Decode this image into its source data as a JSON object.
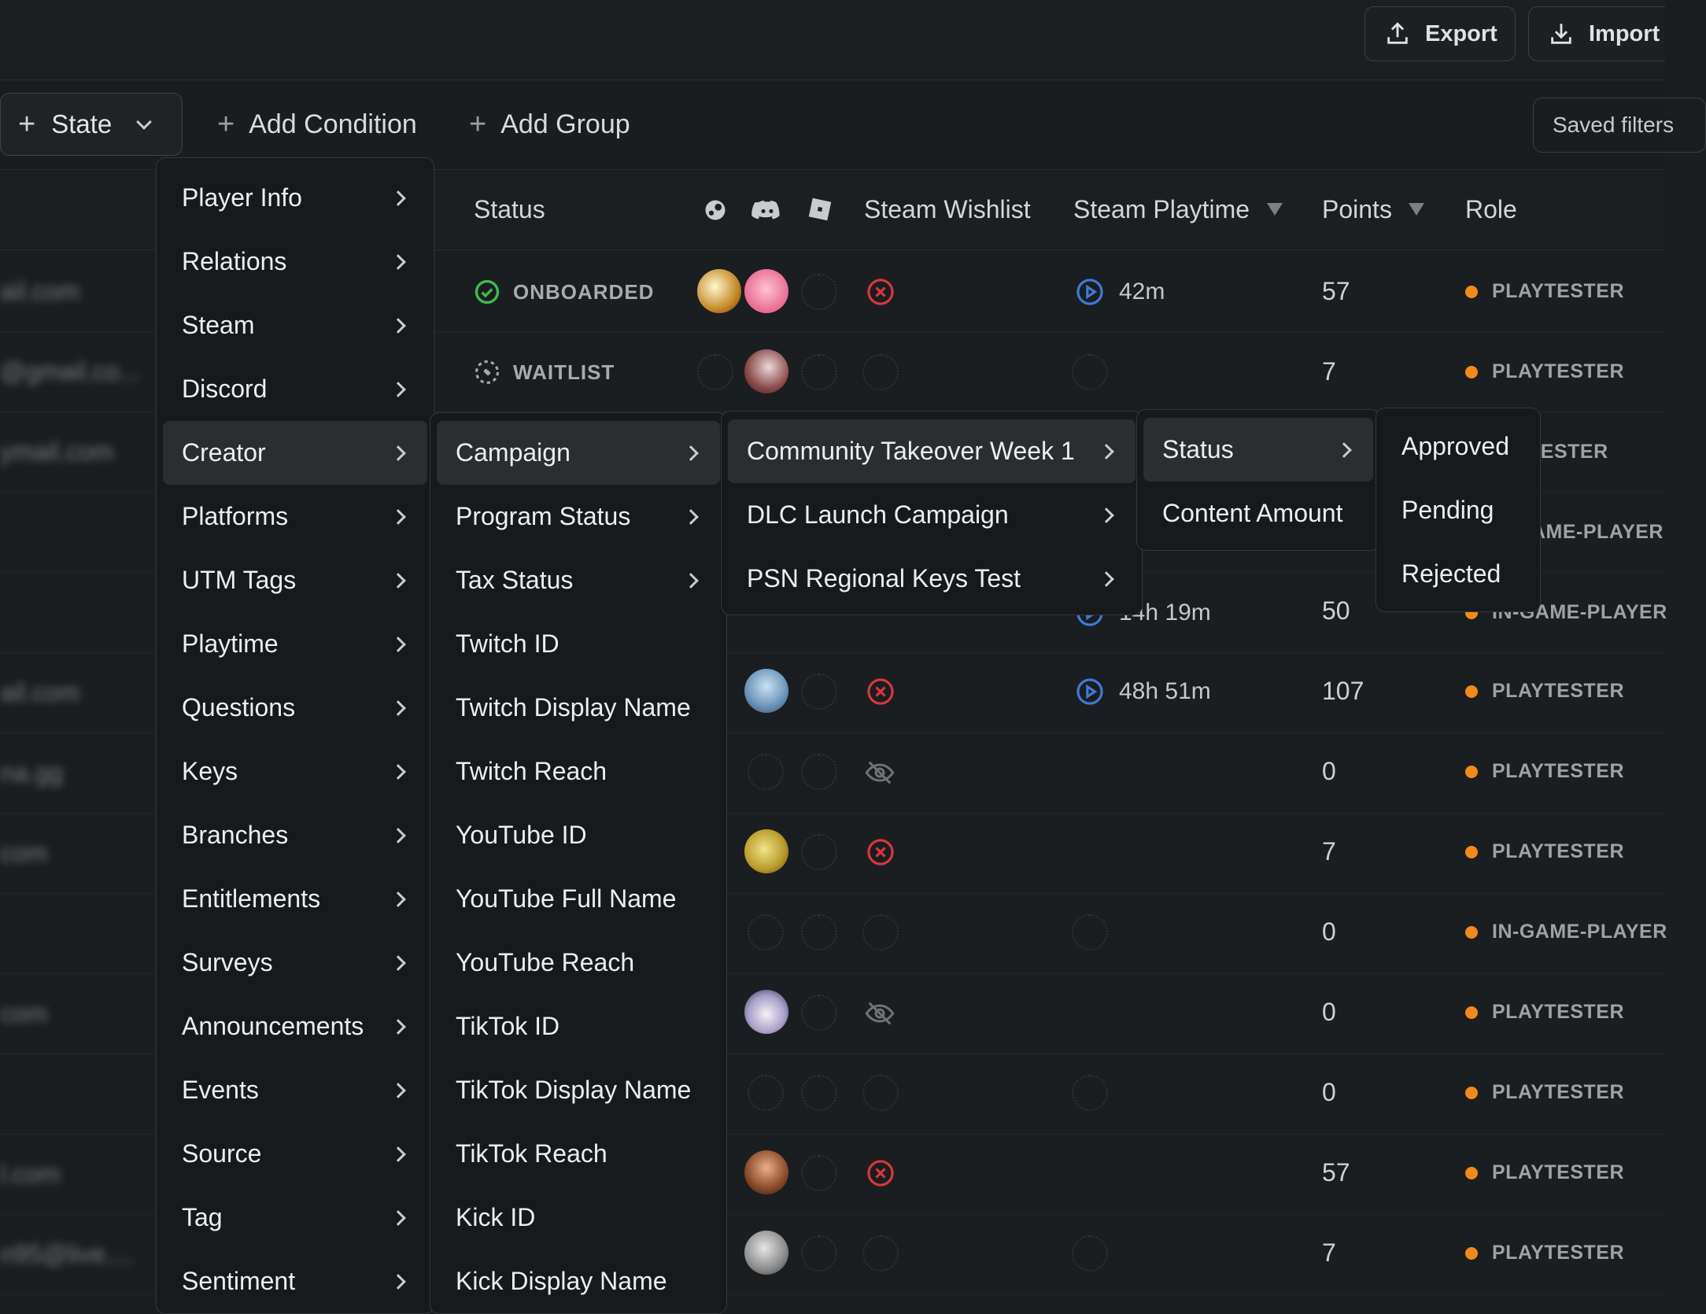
{
  "toolbar": {
    "export_label": "Export",
    "import_label": "Import"
  },
  "filterbar": {
    "state_label": "State",
    "add_condition_label": "Add Condition",
    "add_group_label": "Add Group",
    "saved_filters_label": "Saved filters"
  },
  "table": {
    "headers": {
      "status": "Status",
      "steam_wishlist": "Steam Wishlist",
      "steam_playtime": "Steam Playtime",
      "points": "Points",
      "role": "Role"
    },
    "rows": [
      {
        "email": "ail.com",
        "status": "ONBOARDED",
        "playtime": "42m",
        "points": "57",
        "role": "PLAYTESTER"
      },
      {
        "email": "@gmail.co...",
        "status": "WAITLIST",
        "playtime": "",
        "points": "7",
        "role": "PLAYTESTER"
      },
      {
        "email": "ymail.com",
        "points": "",
        "role": "TESTER"
      },
      {
        "email": "",
        "points": "",
        "role": "AME-PLAYER"
      },
      {
        "email": "",
        "playtime": "14h 19m",
        "points": "50",
        "role": "IN-GAME-PLAYER"
      },
      {
        "email": "ail.com",
        "playtime": "48h 51m",
        "points": "107",
        "role": "PLAYTESTER"
      },
      {
        "email": "na.gg",
        "points": "0",
        "role": "PLAYTESTER"
      },
      {
        "email": "com",
        "points": "7",
        "role": "PLAYTESTER"
      },
      {
        "email": "",
        "points": "0",
        "role": "IN-GAME-PLAYER"
      },
      {
        "email": "com",
        "points": "0",
        "role": "PLAYTESTER"
      },
      {
        "email": "",
        "points": "0",
        "role": "PLAYTESTER"
      },
      {
        "email": "l.com",
        "points": "57",
        "role": "PLAYTESTER"
      },
      {
        "email": "n95@live....",
        "points": "7",
        "role": "PLAYTESTER"
      }
    ]
  },
  "menu1": {
    "items": [
      "Player Info",
      "Relations",
      "Steam",
      "Discord",
      "Creator",
      "Platforms",
      "UTM Tags",
      "Playtime",
      "Questions",
      "Keys",
      "Branches",
      "Entitlements",
      "Surveys",
      "Announcements",
      "Events",
      "Source",
      "Tag",
      "Sentiment"
    ]
  },
  "menu2": {
    "items": [
      "Campaign",
      "Program Status",
      "Tax Status",
      "Twitch ID",
      "Twitch Display Name",
      "Twitch Reach",
      "YouTube ID",
      "YouTube Full Name",
      "YouTube Reach",
      "TikTok ID",
      "TikTok Display Name",
      "TikTok Reach",
      "Kick ID",
      "Kick Display Name"
    ]
  },
  "menu3": {
    "items": [
      "Community Takeover Week 1",
      "DLC Launch Campaign",
      "PSN Regional Keys Test"
    ]
  },
  "menu4": {
    "items": [
      "Status",
      "Content Amount"
    ]
  },
  "menu5": {
    "items": [
      "Approved",
      "Pending",
      "Rejected"
    ]
  },
  "colors": {
    "accent_blue": "#3d7bd9",
    "error_red": "#d9363e",
    "success_green": "#3fb950",
    "role_orange": "#f08a1c"
  }
}
